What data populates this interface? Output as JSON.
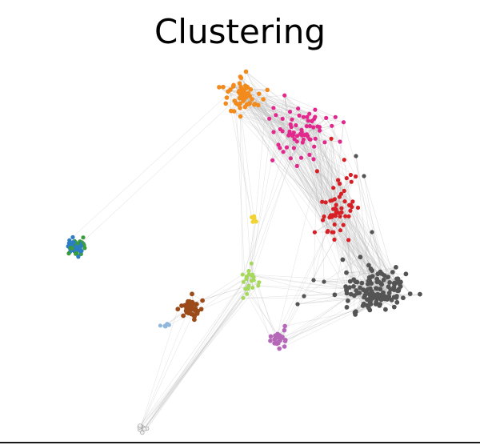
{
  "title": "Clustering",
  "colors": {
    "edge": "#b8b8b8",
    "orange": "#f28a1c",
    "pink": "#e2288d",
    "red": "#d71f26",
    "gray": "#545454",
    "yellow": "#f2d336",
    "blue": "#2c7ec3",
    "green": "#3a9c3e",
    "lightgreen": "#a6d85c",
    "brown": "#9b4a1a",
    "lightblue": "#8fb8dc",
    "purple": "#b568b8",
    "white": "#eeeeee"
  },
  "clusters": [
    {
      "name": "orange",
      "color_key": "orange"
    },
    {
      "name": "pink",
      "color_key": "pink"
    },
    {
      "name": "red",
      "color_key": "red"
    },
    {
      "name": "gray",
      "color_key": "gray"
    },
    {
      "name": "yellow",
      "color_key": "yellow"
    },
    {
      "name": "blue-green",
      "color_key": "blue"
    },
    {
      "name": "light-green",
      "color_key": "lightgreen"
    },
    {
      "name": "brown",
      "color_key": "brown"
    },
    {
      "name": "light-blue",
      "color_key": "lightblue"
    },
    {
      "name": "purple",
      "color_key": "purple"
    },
    {
      "name": "white",
      "color_key": "white"
    }
  ]
}
